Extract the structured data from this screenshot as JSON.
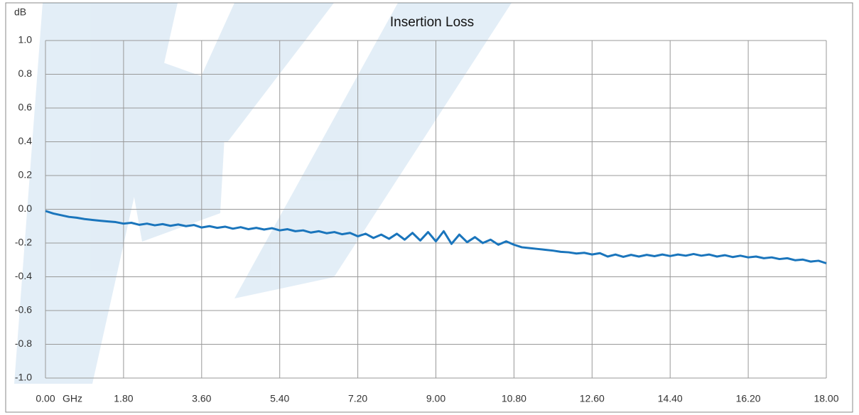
{
  "chart_data": {
    "type": "line",
    "title": "Insertion Loss",
    "y_label": "dB",
    "x_label": "GHz",
    "x": [
      0,
      0.18,
      0.36,
      0.54,
      0.72,
      0.9,
      1.08,
      1.26,
      1.44,
      1.62,
      1.8,
      1.98,
      2.16,
      2.34,
      2.52,
      2.7,
      2.88,
      3.06,
      3.24,
      3.42,
      3.6,
      3.78,
      3.96,
      4.14,
      4.32,
      4.5,
      4.68,
      4.86,
      5.04,
      5.22,
      5.4,
      5.58,
      5.76,
      5.94,
      6.12,
      6.3,
      6.48,
      6.66,
      6.84,
      7.02,
      7.2,
      7.38,
      7.56,
      7.74,
      7.92,
      8.1,
      8.28,
      8.46,
      8.64,
      8.82,
      9,
      9.18,
      9.36,
      9.54,
      9.72,
      9.9,
      10.08,
      10.26,
      10.44,
      10.62,
      10.8,
      10.98,
      11.16,
      11.34,
      11.52,
      11.7,
      11.88,
      12.06,
      12.24,
      12.42,
      12.6,
      12.78,
      12.96,
      13.14,
      13.32,
      13.5,
      13.68,
      13.86,
      14.04,
      14.22,
      14.4,
      14.58,
      14.76,
      14.94,
      15.12,
      15.3,
      15.48,
      15.66,
      15.84,
      16.02,
      16.2,
      16.38,
      16.56,
      16.74,
      16.92,
      17.1,
      17.28,
      17.46,
      17.64,
      17.82,
      18
    ],
    "series": [
      {
        "color": "#1a75bc",
        "values": [
          -0.01,
          -0.025,
          -0.035,
          -0.045,
          -0.05,
          -0.058,
          -0.063,
          -0.068,
          -0.072,
          -0.076,
          -0.085,
          -0.08,
          -0.092,
          -0.085,
          -0.095,
          -0.088,
          -0.098,
          -0.09,
          -0.1,
          -0.093,
          -0.108,
          -0.1,
          -0.11,
          -0.103,
          -0.115,
          -0.106,
          -0.118,
          -0.11,
          -0.12,
          -0.112,
          -0.125,
          -0.118,
          -0.13,
          -0.125,
          -0.138,
          -0.13,
          -0.142,
          -0.135,
          -0.148,
          -0.14,
          -0.16,
          -0.145,
          -0.17,
          -0.15,
          -0.175,
          -0.145,
          -0.18,
          -0.14,
          -0.185,
          -0.135,
          -0.19,
          -0.13,
          -0.205,
          -0.15,
          -0.195,
          -0.165,
          -0.2,
          -0.18,
          -0.21,
          -0.19,
          -0.21,
          -0.225,
          -0.23,
          -0.235,
          -0.24,
          -0.245,
          -0.252,
          -0.255,
          -0.262,
          -0.258,
          -0.268,
          -0.26,
          -0.28,
          -0.268,
          -0.282,
          -0.27,
          -0.28,
          -0.27,
          -0.278,
          -0.268,
          -0.277,
          -0.268,
          -0.275,
          -0.265,
          -0.275,
          -0.268,
          -0.28,
          -0.272,
          -0.283,
          -0.275,
          -0.285,
          -0.28,
          -0.29,
          -0.285,
          -0.295,
          -0.29,
          -0.302,
          -0.298,
          -0.31,
          -0.305,
          -0.32
        ]
      }
    ],
    "xlim": [
      0,
      18
    ],
    "xticks": [
      {
        "value": 0,
        "label": "0.00"
      },
      {
        "value": 1.8,
        "label": "1.80"
      },
      {
        "value": 3.6,
        "label": "3.60"
      },
      {
        "value": 5.4,
        "label": "5.40"
      },
      {
        "value": 7.2,
        "label": "7.20"
      },
      {
        "value": 9,
        "label": "9.00"
      },
      {
        "value": 10.8,
        "label": "10.80"
      },
      {
        "value": 12.6,
        "label": "12.60"
      },
      {
        "value": 14.4,
        "label": "14.40"
      },
      {
        "value": 16.2,
        "label": "16.20"
      },
      {
        "value": 18,
        "label": "18.00"
      }
    ],
    "ylim": [
      -1,
      1
    ],
    "yticks": [
      {
        "value": -1,
        "label": "-1.0"
      },
      -0.8,
      -0.6,
      -0.4,
      -0.2,
      {
        "value": 0,
        "label": "0.0"
      },
      0.2,
      0.4,
      0.6,
      0.8,
      {
        "value": 1,
        "label": "1.0"
      }
    ],
    "grid": true
  }
}
